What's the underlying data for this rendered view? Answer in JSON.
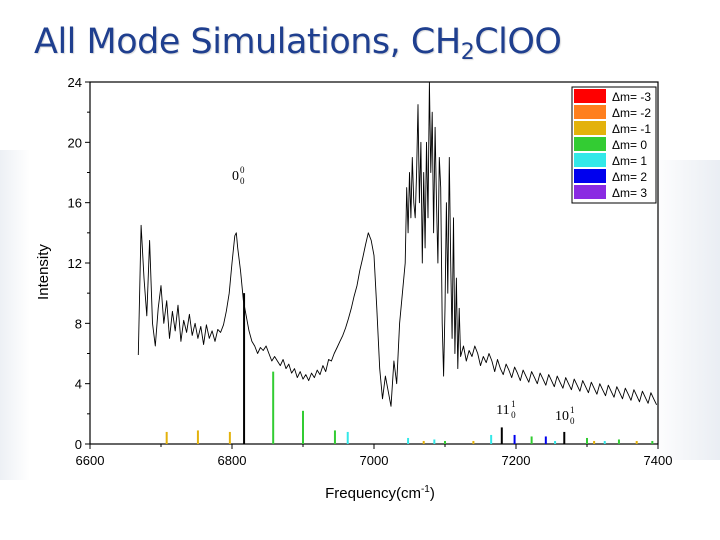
{
  "slide": {
    "title_main": "All Mode Simulations, CH",
    "title_sub": "2",
    "title_tail": "ClOO"
  },
  "chart_data": {
    "type": "line",
    "xlabel": "Frequency(cm",
    "xlabel_sup": "-1",
    "xlabel_close": ")",
    "ylabel": "Intensity",
    "xlim": [
      6600,
      7400
    ],
    "ylim": [
      0,
      24
    ],
    "xticks": [
      6600,
      6800,
      7000,
      7200,
      7400
    ],
    "yticks": [
      0,
      4,
      8,
      12,
      16,
      20,
      24
    ],
    "grid": false,
    "legend_position": "top-right",
    "legend": [
      {
        "label": "Δm= -3",
        "color": "#ff0000"
      },
      {
        "label": "Δm= -2",
        "color": "#ff7f1e"
      },
      {
        "label": "Δm= -1",
        "color": "#e3b20c"
      },
      {
        "label": "Δm= 0",
        "color": "#33cc33"
      },
      {
        "label": "Δm= 1",
        "color": "#33e8e8"
      },
      {
        "label": "Δm= 2",
        "color": "#0000ee"
      },
      {
        "label": "Δm= 3",
        "color": "#8a2be2"
      }
    ],
    "experimental_spectrum": {
      "color": "#000000",
      "points": [
        [
          6668,
          5.9
        ],
        [
          6672,
          14.5
        ],
        [
          6676,
          11
        ],
        [
          6680,
          8.5
        ],
        [
          6684,
          13.5
        ],
        [
          6688,
          8
        ],
        [
          6692,
          6.5
        ],
        [
          6696,
          9
        ],
        [
          6700,
          10.5
        ],
        [
          6704,
          8
        ],
        [
          6708,
          9.5
        ],
        [
          6712,
          7
        ],
        [
          6716,
          8.8
        ],
        [
          6720,
          7.5
        ],
        [
          6724,
          9.2
        ],
        [
          6728,
          6.8
        ],
        [
          6732,
          8.2
        ],
        [
          6736,
          7.4
        ],
        [
          6740,
          8.6
        ],
        [
          6744,
          7.2
        ],
        [
          6748,
          8
        ],
        [
          6752,
          7
        ],
        [
          6756,
          7.8
        ],
        [
          6760,
          6.6
        ],
        [
          6764,
          7.9
        ],
        [
          6768,
          7
        ],
        [
          6772,
          7.5
        ],
        [
          6776,
          6.8
        ],
        [
          6780,
          7.6
        ],
        [
          6784,
          7.4
        ],
        [
          6788,
          7.9
        ],
        [
          6792,
          8.8
        ],
        [
          6796,
          10
        ],
        [
          6800,
          12
        ],
        [
          6804,
          13.8
        ],
        [
          6806,
          14
        ],
        [
          6808,
          13
        ],
        [
          6812,
          11.5
        ],
        [
          6816,
          9.5
        ],
        [
          6820,
          8.5
        ],
        [
          6824,
          7.5
        ],
        [
          6828,
          6.8
        ],
        [
          6832,
          6.5
        ],
        [
          6836,
          6
        ],
        [
          6840,
          6.4
        ],
        [
          6844,
          6.2
        ],
        [
          6848,
          6.5
        ],
        [
          6852,
          6
        ],
        [
          6856,
          5.5
        ],
        [
          6860,
          5.8
        ],
        [
          6864,
          5.5
        ],
        [
          6868,
          5.2
        ],
        [
          6872,
          5.6
        ],
        [
          6876,
          5
        ],
        [
          6880,
          5.3
        ],
        [
          6884,
          4.7
        ],
        [
          6888,
          5
        ],
        [
          6892,
          4.4
        ],
        [
          6896,
          4.8
        ],
        [
          6900,
          4.3
        ],
        [
          6904,
          4.6
        ],
        [
          6908,
          4.2
        ],
        [
          6912,
          4.7
        ],
        [
          6916,
          4.4
        ],
        [
          6920,
          4.9
        ],
        [
          6924,
          4.6
        ],
        [
          6928,
          5.2
        ],
        [
          6932,
          4.8
        ],
        [
          6936,
          5.6
        ],
        [
          6940,
          5.5
        ],
        [
          6944,
          6
        ],
        [
          6948,
          6.4
        ],
        [
          6952,
          6.8
        ],
        [
          6956,
          7.2
        ],
        [
          6960,
          7.7
        ],
        [
          6964,
          8.3
        ],
        [
          6968,
          9
        ],
        [
          6972,
          9.8
        ],
        [
          6976,
          10.5
        ],
        [
          6980,
          11.5
        ],
        [
          6984,
          12.3
        ],
        [
          6988,
          13.2
        ],
        [
          6992,
          14
        ],
        [
          6996,
          13.5
        ],
        [
          7000,
          12.5
        ],
        [
          7004,
          9
        ],
        [
          7008,
          5
        ],
        [
          7012,
          3
        ],
        [
          7016,
          4.5
        ],
        [
          7020,
          3.5
        ],
        [
          7024,
          2.5
        ],
        [
          7028,
          5.5
        ],
        [
          7032,
          4
        ],
        [
          7036,
          8
        ],
        [
          7040,
          10
        ],
        [
          7044,
          12
        ],
        [
          7046,
          17
        ],
        [
          7048,
          14
        ],
        [
          7050,
          18
        ],
        [
          7052,
          15
        ],
        [
          7054,
          19
        ],
        [
          7056,
          16
        ],
        [
          7058,
          15
        ],
        [
          7060,
          18
        ],
        [
          7062,
          22.5
        ],
        [
          7064,
          16
        ],
        [
          7066,
          20
        ],
        [
          7068,
          12
        ],
        [
          7070,
          18
        ],
        [
          7072,
          13
        ],
        [
          7074,
          20
        ],
        [
          7076,
          15
        ],
        [
          7078,
          24
        ],
        [
          7080,
          18
        ],
        [
          7082,
          22
        ],
        [
          7084,
          14
        ],
        [
          7086,
          21
        ],
        [
          7088,
          16
        ],
        [
          7090,
          12
        ],
        [
          7092,
          19
        ],
        [
          7094,
          17
        ],
        [
          7096,
          8
        ],
        [
          7098,
          4.5
        ],
        [
          7100,
          9
        ],
        [
          7102,
          16
        ],
        [
          7104,
          10
        ],
        [
          7106,
          19
        ],
        [
          7108,
          12
        ],
        [
          7110,
          7
        ],
        [
          7112,
          15
        ],
        [
          7114,
          6
        ],
        [
          7116,
          11
        ],
        [
          7118,
          5
        ],
        [
          7120,
          9
        ],
        [
          7122,
          5.8
        ],
        [
          7126,
          6.5
        ],
        [
          7130,
          5.5
        ],
        [
          7134,
          6.2
        ],
        [
          7138,
          5.8
        ],
        [
          7142,
          6.5
        ],
        [
          7146,
          6
        ],
        [
          7150,
          5.2
        ],
        [
          7154,
          5.8
        ],
        [
          7158,
          5.4
        ],
        [
          7162,
          6
        ],
        [
          7166,
          5.5
        ],
        [
          7170,
          4.8
        ],
        [
          7174,
          5.6
        ],
        [
          7178,
          5
        ],
        [
          7182,
          4.6
        ],
        [
          7186,
          5.3
        ],
        [
          7190,
          4.9
        ],
        [
          7194,
          4.4
        ],
        [
          7198,
          5.1
        ],
        [
          7202,
          4.7
        ],
        [
          7206,
          4.2
        ],
        [
          7210,
          4.9
        ],
        [
          7214,
          4.5
        ],
        [
          7218,
          4.1
        ],
        [
          7222,
          4.8
        ],
        [
          7226,
          4.4
        ],
        [
          7230,
          4
        ],
        [
          7234,
          4.7
        ],
        [
          7238,
          4.3
        ],
        [
          7242,
          3.9
        ],
        [
          7246,
          4.6
        ],
        [
          7250,
          4.2
        ],
        [
          7254,
          3.8
        ],
        [
          7258,
          4.5
        ],
        [
          7262,
          4.1
        ],
        [
          7266,
          3.7
        ],
        [
          7270,
          4.4
        ],
        [
          7274,
          4
        ],
        [
          7278,
          3.6
        ],
        [
          7282,
          4.3
        ],
        [
          7286,
          3.9
        ],
        [
          7290,
          3.5
        ],
        [
          7294,
          4.2
        ],
        [
          7298,
          3.8
        ],
        [
          7302,
          3.4
        ],
        [
          7306,
          4.1
        ],
        [
          7310,
          3.7
        ],
        [
          7314,
          3.3
        ],
        [
          7318,
          4
        ],
        [
          7322,
          3.6
        ],
        [
          7326,
          3.2
        ],
        [
          7330,
          3.9
        ],
        [
          7334,
          3.5
        ],
        [
          7338,
          3.1
        ],
        [
          7342,
          3.8
        ],
        [
          7346,
          3.4
        ],
        [
          7350,
          3
        ],
        [
          7354,
          3.7
        ],
        [
          7358,
          3.3
        ],
        [
          7362,
          2.9
        ],
        [
          7366,
          3.6
        ],
        [
          7370,
          3.2
        ],
        [
          7374,
          2.8
        ],
        [
          7378,
          3.5
        ],
        [
          7382,
          3.1
        ],
        [
          7386,
          2.7
        ],
        [
          7390,
          3.4
        ],
        [
          7394,
          3
        ],
        [
          7398,
          2.6
        ]
      ]
    },
    "stick_spectrum": [
      {
        "x": 6708,
        "y": 0.8,
        "color": "#e3b20c"
      },
      {
        "x": 6752,
        "y": 0.9,
        "color": "#e3b20c"
      },
      {
        "x": 6797,
        "y": 0.8,
        "color": "#e3b20c"
      },
      {
        "x": 6817,
        "y": 10,
        "color": "#000000"
      },
      {
        "x": 6858,
        "y": 4.8,
        "color": "#33cc33"
      },
      {
        "x": 6900,
        "y": 2.2,
        "color": "#33cc33"
      },
      {
        "x": 6945,
        "y": 0.9,
        "color": "#33cc33"
      },
      {
        "x": 6963,
        "y": 0.8,
        "color": "#33e8e8"
      },
      {
        "x": 7048,
        "y": 0.4,
        "color": "#33e8e8"
      },
      {
        "x": 7070,
        "y": 0.2,
        "color": "#e3b20c"
      },
      {
        "x": 7085,
        "y": 0.3,
        "color": "#33e8e8"
      },
      {
        "x": 7100,
        "y": 0.2,
        "color": "#33cc33"
      },
      {
        "x": 7140,
        "y": 0.2,
        "color": "#e3b20c"
      },
      {
        "x": 7165,
        "y": 0.6,
        "color": "#33e8e8"
      },
      {
        "x": 7180,
        "y": 1.1,
        "color": "#000000"
      },
      {
        "x": 7198,
        "y": 0.6,
        "color": "#0000ee"
      },
      {
        "x": 7222,
        "y": 0.5,
        "color": "#33cc33"
      },
      {
        "x": 7242,
        "y": 0.5,
        "color": "#0000ee"
      },
      {
        "x": 7255,
        "y": 0.2,
        "color": "#33e8e8"
      },
      {
        "x": 7268,
        "y": 0.8,
        "color": "#000000"
      },
      {
        "x": 7300,
        "y": 0.4,
        "color": "#33cc33"
      },
      {
        "x": 7310,
        "y": 0.2,
        "color": "#e3b20c"
      },
      {
        "x": 7325,
        "y": 0.2,
        "color": "#33e8e8"
      },
      {
        "x": 7345,
        "y": 0.3,
        "color": "#33cc33"
      },
      {
        "x": 7370,
        "y": 0.2,
        "color": "#e3b20c"
      },
      {
        "x": 7392,
        "y": 0.2,
        "color": "#33cc33"
      }
    ],
    "annotations": [
      {
        "id": "band-origin",
        "base": "0",
        "sup": "0",
        "sub": "0",
        "x": 6800,
        "y": 17.5
      },
      {
        "id": "band-11",
        "base": "11",
        "sup": "1",
        "sub": "0",
        "x": 7172,
        "y": 2.0
      },
      {
        "id": "band-10",
        "base": "10",
        "sup": "1",
        "sub": "0",
        "x": 7255,
        "y": 1.6
      }
    ]
  }
}
